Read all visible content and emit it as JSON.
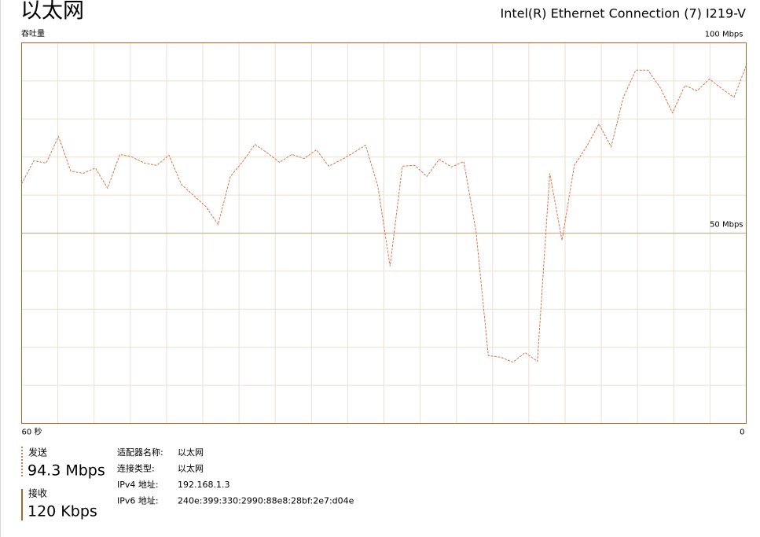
{
  "header": {
    "title": "以太网",
    "adapter": "Intel(R) Ethernet Connection (7) I219-V"
  },
  "chart_data": {
    "type": "line",
    "y_label": "吞吐量",
    "xlim": [
      60,
      0
    ],
    "xticks": [
      {
        "value": 60,
        "label": "60 秒"
      },
      0
    ],
    "xgrid": [
      57,
      54,
      51,
      48,
      45,
      42,
      39,
      36,
      33,
      30,
      27,
      24,
      21,
      18,
      15,
      12,
      9,
      6,
      3
    ],
    "ylim": [
      0,
      100
    ],
    "yticks": [
      {
        "value": 50,
        "label": "50 Mbps"
      },
      {
        "value": 100,
        "label": "100 Mbps"
      }
    ],
    "ygrid": [
      10,
      20,
      30,
      40,
      60,
      70,
      80,
      90
    ],
    "series": [
      {
        "color": "#d9774a",
        "values": [
          63,
          69,
          68.4,
          75.4,
          66.3,
          65.7,
          67.1,
          61.8,
          70.7,
          70,
          68.4,
          67.8,
          70.5,
          62.8,
          59.9,
          57,
          52.3,
          64.9,
          68.8,
          73.3,
          71.1,
          68.6,
          70.7,
          69.6,
          71.9,
          67.6,
          69.2,
          71.1,
          73.1,
          62.4,
          41.3,
          67.6,
          67.8,
          64.9,
          69.4,
          67.4,
          68.8,
          50.4,
          17.8,
          17.4,
          16.1,
          18.6,
          16.3,
          65.7,
          48.1,
          67.8,
          72.7,
          78.7,
          72.7,
          85.7,
          92.8,
          92.8,
          88.2,
          81.6,
          88.8,
          87.4,
          90.5,
          88,
          85.7,
          94
        ]
      }
    ]
  },
  "stats": {
    "send_label": "发送",
    "send_value": "94.3 Mbps",
    "recv_label": "接收",
    "recv_value": "120 Kbps"
  },
  "details": [
    [
      "适配器名称:",
      "以太网"
    ],
    [
      "连接类型:",
      "以太网"
    ],
    [
      "IPv4 地址:",
      "192.168.1.3"
    ],
    [
      "IPv6 地址:",
      "240e:399:330:2990:88e8:28bf:2e7:d04e"
    ]
  ]
}
